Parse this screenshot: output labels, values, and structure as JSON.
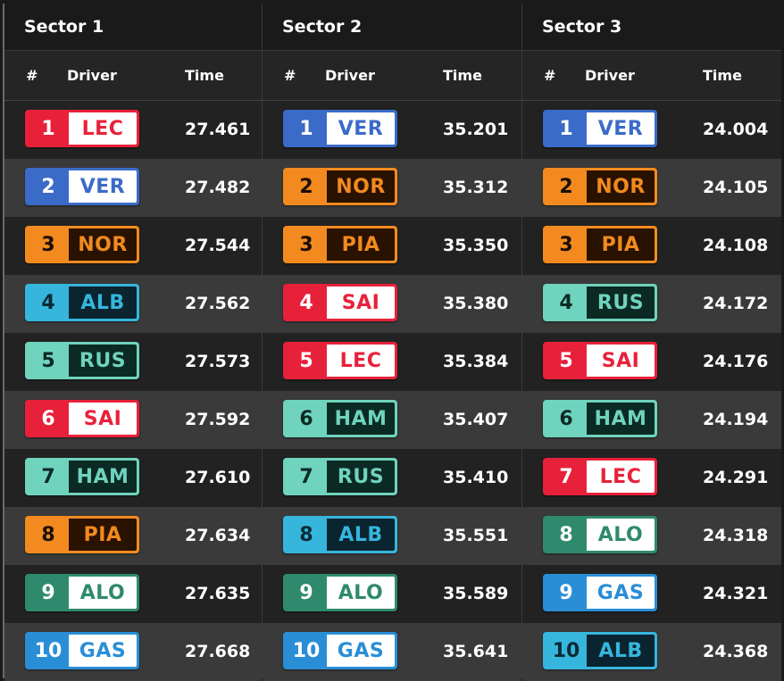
{
  "teams": {
    "ferrari": {
      "bg": "#e8213b",
      "fg": "#ffffff",
      "code_bg": "#ffffff",
      "code_fg": "#e8213b"
    },
    "redbull": {
      "bg": "#3b6bc8",
      "fg": "#ffffff",
      "code_bg": "#ffffff",
      "code_fg": "#3b6bc8"
    },
    "mclaren": {
      "bg": "#f28a1f",
      "fg": "#1a0e00",
      "code_bg": "#2a1200",
      "code_fg": "#f28a1f"
    },
    "williams": {
      "bg": "#36b6dc",
      "fg": "#0a2a36",
      "code_bg": "#0a2430",
      "code_fg": "#36b6dc"
    },
    "mercedes": {
      "bg": "#6fd3bd",
      "fg": "#0c2a24",
      "code_bg": "#0c2a24",
      "code_fg": "#6fd3bd"
    },
    "aston": {
      "bg": "#2f8a6d",
      "fg": "#ffffff",
      "code_bg": "#ffffff",
      "code_fg": "#2f8a6d"
    },
    "alpine": {
      "bg": "#2a8ed6",
      "fg": "#ffffff",
      "code_bg": "#ffffff",
      "code_fg": "#2a8ed6"
    }
  },
  "headers": {
    "num": "#",
    "driver": "Driver",
    "time": "Time"
  },
  "sectors": [
    {
      "title": "Sector 1",
      "rows": [
        {
          "pos": "1",
          "code": "LEC",
          "team": "ferrari",
          "time": "27.461"
        },
        {
          "pos": "2",
          "code": "VER",
          "team": "redbull",
          "time": "27.482"
        },
        {
          "pos": "3",
          "code": "NOR",
          "team": "mclaren",
          "time": "27.544"
        },
        {
          "pos": "4",
          "code": "ALB",
          "team": "williams",
          "time": "27.562"
        },
        {
          "pos": "5",
          "code": "RUS",
          "team": "mercedes",
          "time": "27.573"
        },
        {
          "pos": "6",
          "code": "SAI",
          "team": "ferrari",
          "time": "27.592"
        },
        {
          "pos": "7",
          "code": "HAM",
          "team": "mercedes",
          "time": "27.610"
        },
        {
          "pos": "8",
          "code": "PIA",
          "team": "mclaren",
          "time": "27.634"
        },
        {
          "pos": "9",
          "code": "ALO",
          "team": "aston",
          "time": "27.635"
        },
        {
          "pos": "10",
          "code": "GAS",
          "team": "alpine",
          "time": "27.668"
        }
      ]
    },
    {
      "title": "Sector 2",
      "rows": [
        {
          "pos": "1",
          "code": "VER",
          "team": "redbull",
          "time": "35.201"
        },
        {
          "pos": "2",
          "code": "NOR",
          "team": "mclaren",
          "time": "35.312"
        },
        {
          "pos": "3",
          "code": "PIA",
          "team": "mclaren",
          "time": "35.350"
        },
        {
          "pos": "4",
          "code": "SAI",
          "team": "ferrari",
          "time": "35.380"
        },
        {
          "pos": "5",
          "code": "LEC",
          "team": "ferrari",
          "time": "35.384"
        },
        {
          "pos": "6",
          "code": "HAM",
          "team": "mercedes",
          "time": "35.407"
        },
        {
          "pos": "7",
          "code": "RUS",
          "team": "mercedes",
          "time": "35.410"
        },
        {
          "pos": "8",
          "code": "ALB",
          "team": "williams",
          "time": "35.551"
        },
        {
          "pos": "9",
          "code": "ALO",
          "team": "aston",
          "time": "35.589"
        },
        {
          "pos": "10",
          "code": "GAS",
          "team": "alpine",
          "time": "35.641"
        }
      ]
    },
    {
      "title": "Sector 3",
      "rows": [
        {
          "pos": "1",
          "code": "VER",
          "team": "redbull",
          "time": "24.004"
        },
        {
          "pos": "2",
          "code": "NOR",
          "team": "mclaren",
          "time": "24.105"
        },
        {
          "pos": "3",
          "code": "PIA",
          "team": "mclaren",
          "time": "24.108"
        },
        {
          "pos": "4",
          "code": "RUS",
          "team": "mercedes",
          "time": "24.172"
        },
        {
          "pos": "5",
          "code": "SAI",
          "team": "ferrari",
          "time": "24.176"
        },
        {
          "pos": "6",
          "code": "HAM",
          "team": "mercedes",
          "time": "24.194"
        },
        {
          "pos": "7",
          "code": "LEC",
          "team": "ferrari",
          "time": "24.291"
        },
        {
          "pos": "8",
          "code": "ALO",
          "team": "aston",
          "time": "24.318"
        },
        {
          "pos": "9",
          "code": "GAS",
          "team": "alpine",
          "time": "24.321"
        },
        {
          "pos": "10",
          "code": "ALB",
          "team": "williams",
          "time": "24.368"
        }
      ]
    }
  ]
}
